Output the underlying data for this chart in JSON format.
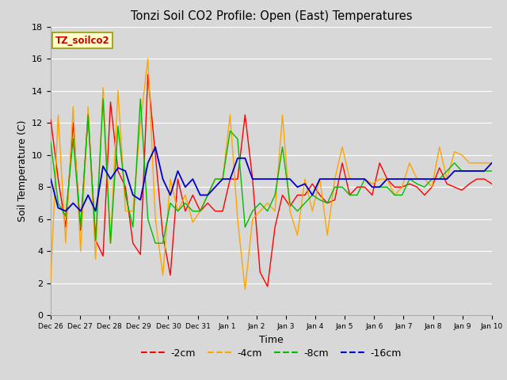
{
  "title": "Tonzi Soil CO2 Profile: Open (East) Temperatures",
  "xlabel": "Time",
  "ylabel": "Soil Temperature (C)",
  "ylim": [
    0,
    18
  ],
  "legend_label": "TZ_soilco2",
  "series_labels": [
    "-2cm",
    "-4cm",
    "-8cm",
    "-16cm"
  ],
  "series_colors": [
    "#ff0000",
    "#ffa500",
    "#00bb00",
    "#0000cc"
  ],
  "xtick_labels": [
    "Dec 26",
    "Dec 27",
    "Dec 28",
    "Dec 29",
    "Dec 30",
    "Dec 31",
    "Jan 1",
    "Jan 2",
    "Jan 3",
    "Jan 4",
    "Jan 5",
    "Jan 6",
    "Jan 7",
    "Jan 8",
    "Jan 9",
    "Jan 10"
  ],
  "cm2": [
    12.2,
    8.5,
    5.5,
    12.0,
    5.3,
    12.5,
    4.7,
    3.7,
    13.3,
    9.0,
    8.0,
    4.5,
    3.8,
    15.0,
    10.0,
    5.0,
    2.5,
    8.5,
    6.5,
    7.5,
    6.5,
    7.0,
    6.5,
    6.5,
    8.5,
    8.5,
    12.5,
    8.5,
    2.7,
    1.8,
    5.5,
    7.5,
    6.8,
    7.5,
    7.5,
    8.2,
    7.5,
    7.0,
    7.2,
    9.5,
    7.5,
    8.0,
    8.0,
    7.5,
    9.5,
    8.5,
    8.0,
    8.0,
    8.2,
    8.0,
    7.5,
    8.0,
    9.2,
    8.2,
    8.0,
    7.8,
    8.2,
    8.5,
    8.5,
    8.2
  ],
  "cm4": [
    2.2,
    12.5,
    4.5,
    13.0,
    4.0,
    13.0,
    3.5,
    14.2,
    4.5,
    14.0,
    6.5,
    6.5,
    12.0,
    16.0,
    6.0,
    2.5,
    8.5,
    6.5,
    7.5,
    5.8,
    6.5,
    7.5,
    8.5,
    8.5,
    12.5,
    6.0,
    1.6,
    6.0,
    6.5,
    7.0,
    6.5,
    12.5,
    6.5,
    5.0,
    8.5,
    6.5,
    8.5,
    5.0,
    8.5,
    10.5,
    8.5,
    8.5,
    8.5,
    8.2,
    8.5,
    8.5,
    7.5,
    8.0,
    9.5,
    8.5,
    8.5,
    8.0,
    10.5,
    8.5,
    10.2,
    10.0,
    9.5,
    9.5,
    9.5,
    9.5
  ],
  "cm8": [
    10.8,
    7.0,
    6.2,
    11.0,
    5.5,
    12.5,
    4.7,
    13.5,
    4.5,
    11.8,
    7.5,
    5.5,
    13.5,
    6.0,
    4.5,
    4.5,
    7.0,
    6.5,
    7.0,
    6.5,
    6.5,
    7.5,
    8.5,
    8.5,
    11.5,
    11.0,
    5.5,
    6.5,
    7.0,
    6.5,
    7.5,
    10.5,
    7.0,
    6.5,
    7.0,
    7.5,
    7.2,
    7.0,
    8.0,
    8.0,
    7.5,
    7.5,
    8.5,
    8.0,
    8.0,
    8.0,
    7.5,
    7.5,
    8.5,
    8.2,
    8.0,
    8.5,
    8.5,
    9.0,
    9.5,
    9.0,
    9.0,
    9.0,
    9.0,
    9.0
  ],
  "cm16": [
    8.5,
    6.7,
    6.5,
    7.0,
    6.5,
    7.5,
    6.5,
    9.3,
    8.5,
    9.2,
    9.0,
    7.5,
    7.2,
    9.5,
    10.5,
    8.5,
    7.5,
    9.0,
    8.0,
    8.5,
    7.5,
    7.5,
    8.0,
    8.5,
    8.5,
    9.8,
    9.8,
    8.5,
    8.5,
    8.5,
    8.5,
    8.5,
    8.5,
    8.0,
    8.2,
    7.5,
    8.5,
    8.5,
    8.5,
    8.5,
    8.5,
    8.5,
    8.5,
    8.0,
    8.0,
    8.5,
    8.5,
    8.5,
    8.5,
    8.5,
    8.5,
    8.5,
    8.5,
    8.5,
    9.0,
    9.0,
    9.0,
    9.0,
    9.0,
    9.5
  ]
}
